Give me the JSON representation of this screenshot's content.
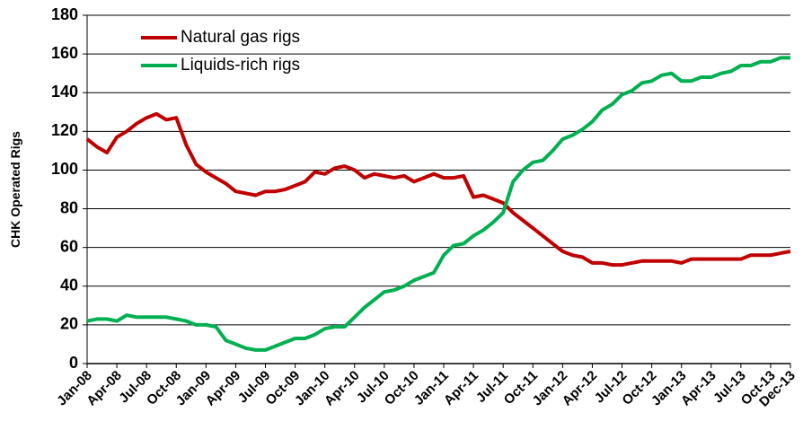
{
  "chart_data": {
    "type": "line",
    "y_label": "CHK Operated Rigs",
    "categories": [
      "Jan-08",
      null,
      null,
      "Apr-08",
      null,
      null,
      "Jul-08",
      null,
      null,
      "Oct-08",
      null,
      null,
      "Jan-09",
      null,
      null,
      "Apr-09",
      null,
      null,
      "Jul-09",
      null,
      null,
      "Oct-09",
      null,
      null,
      "Jan-10",
      null,
      null,
      "Apr-10",
      null,
      null,
      "Jul-10",
      null,
      null,
      "Oct-10",
      null,
      null,
      "Jan-11",
      null,
      null,
      "Apr-11",
      null,
      null,
      "Jul-11",
      null,
      null,
      "Oct-11",
      null,
      null,
      "Jan-12",
      null,
      null,
      "Apr-12",
      null,
      null,
      "Jul-12",
      null,
      null,
      "Oct-12",
      null,
      null,
      "Jan-13",
      null,
      null,
      "Apr-13",
      null,
      null,
      "Jul-13",
      null,
      null,
      "Oct-13",
      null,
      "Dec-13"
    ],
    "series": [
      {
        "name": "Natural gas rigs",
        "color": "#c00000",
        "values": [
          116,
          112,
          109,
          117,
          120,
          124,
          127,
          129,
          126,
          127,
          113,
          103,
          99,
          96,
          93,
          89,
          88,
          87,
          89,
          89,
          90,
          92,
          94,
          99,
          98,
          101,
          102,
          100,
          96,
          98,
          97,
          96,
          97,
          94,
          96,
          98,
          96,
          96,
          97,
          86,
          87,
          85,
          83,
          78,
          74,
          70,
          66,
          62,
          58,
          56,
          55,
          52,
          52,
          51,
          51,
          52,
          53,
          53,
          53,
          53,
          52,
          54,
          54,
          54,
          54,
          54,
          54,
          56,
          56,
          56,
          57,
          58
        ]
      },
      {
        "name": "Liquids-rich rigs",
        "color": "#00b050",
        "values": [
          22,
          23,
          23,
          22,
          25,
          24,
          24,
          24,
          24,
          23,
          22,
          20,
          20,
          19,
          12,
          10,
          8,
          7,
          7,
          9,
          11,
          13,
          13,
          15,
          18,
          19,
          19,
          24,
          29,
          33,
          37,
          38,
          40,
          43,
          45,
          47,
          56,
          61,
          62,
          66,
          69,
          73,
          78,
          94,
          100,
          104,
          105,
          110,
          116,
          118,
          121,
          125,
          131,
          134,
          139,
          141,
          145,
          146,
          149,
          150,
          146,
          146,
          148,
          148,
          150,
          151,
          154,
          154,
          156,
          156,
          158,
          158
        ]
      }
    ],
    "ylim": [
      0,
      180
    ],
    "yticks": [
      0,
      20,
      40,
      60,
      80,
      100,
      120,
      140,
      160,
      180
    ],
    "grid": true,
    "legend": "top-left"
  }
}
